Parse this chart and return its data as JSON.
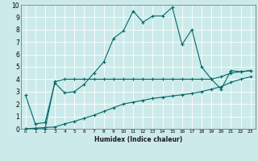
{
  "xlabel": "Humidex (Indice chaleur)",
  "ylabel": "",
  "bg_color": "#cceaea",
  "grid_color": "#b8d8d8",
  "line_color": "#006868",
  "xlim": [
    -0.5,
    23.5
  ],
  "ylim": [
    0,
    10
  ],
  "xtick_labels": [
    "0",
    "1",
    "2",
    "3",
    "4",
    "5",
    "6",
    "7",
    "8",
    "9",
    "10",
    "11",
    "12",
    "13",
    "14",
    "15",
    "16",
    "17",
    "18",
    "19",
    "20",
    "21",
    "22",
    "23"
  ],
  "ytick_labels": [
    "0",
    "1",
    "2",
    "3",
    "4",
    "5",
    "6",
    "7",
    "8",
    "9",
    "10"
  ],
  "series1_x": [
    0,
    1,
    2,
    3,
    4,
    5,
    6,
    7,
    8,
    9,
    10,
    11,
    12,
    13,
    14,
    15,
    16,
    17,
    18,
    19,
    20,
    21,
    22,
    23
  ],
  "series1_y": [
    2.7,
    0.4,
    0.5,
    3.7,
    2.9,
    3.0,
    3.6,
    4.5,
    5.4,
    7.3,
    7.9,
    9.5,
    8.6,
    9.1,
    9.1,
    9.8,
    6.8,
    8.0,
    5.0,
    4.0,
    3.2,
    4.7,
    4.6,
    4.7
  ],
  "series2_x": [
    0,
    1,
    2,
    3,
    4,
    5,
    6,
    7,
    8,
    9,
    10,
    11,
    12,
    13,
    14,
    15,
    16,
    17,
    18,
    19,
    20,
    21,
    22,
    23
  ],
  "series2_y": [
    0.0,
    0.0,
    0.0,
    3.8,
    4.0,
    4.0,
    4.0,
    4.0,
    4.0,
    4.0,
    4.0,
    4.0,
    4.0,
    4.0,
    4.0,
    4.0,
    4.0,
    4.0,
    4.0,
    4.0,
    4.2,
    4.5,
    4.6,
    4.7
  ],
  "series3_x": [
    0,
    1,
    2,
    3,
    4,
    5,
    6,
    7,
    8,
    9,
    10,
    11,
    12,
    13,
    14,
    15,
    16,
    17,
    18,
    19,
    20,
    21,
    22,
    23
  ],
  "series3_y": [
    0.0,
    0.05,
    0.1,
    0.15,
    0.4,
    0.6,
    0.85,
    1.1,
    1.4,
    1.7,
    2.0,
    2.15,
    2.3,
    2.45,
    2.55,
    2.65,
    2.75,
    2.85,
    3.0,
    3.2,
    3.4,
    3.75,
    4.0,
    4.2
  ]
}
